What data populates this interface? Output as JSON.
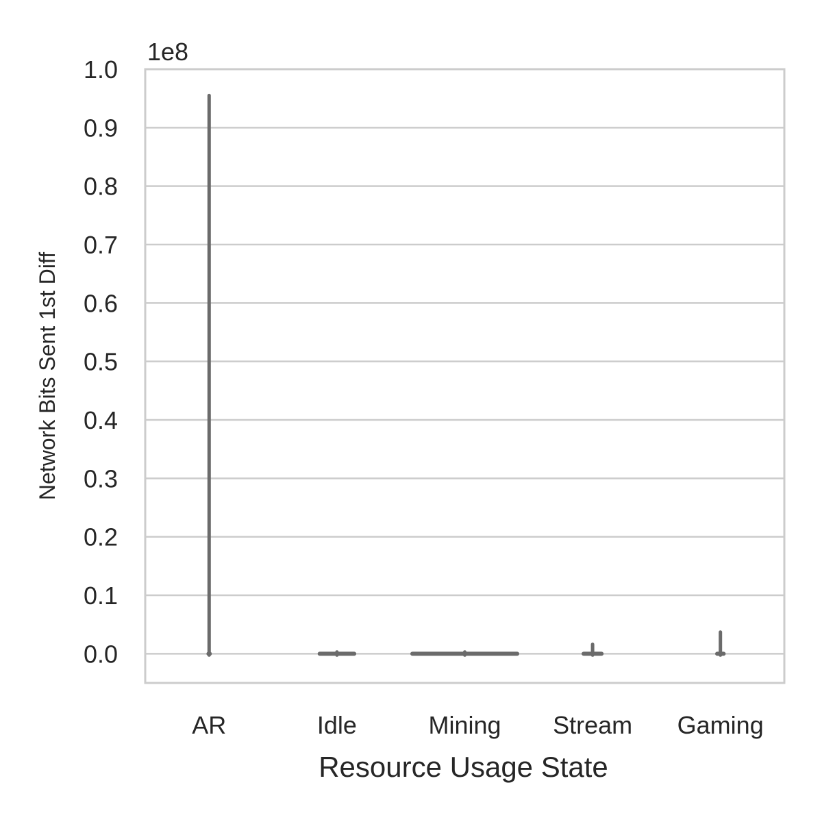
{
  "chart_data": {
    "type": "violin",
    "title": "",
    "xlabel": "Resource Usage State",
    "ylabel": "Network Bits Sent 1st Diff",
    "y_offset_label": "1e8",
    "y_scale_exponent": 8,
    "categories": [
      "AR",
      "Idle",
      "Mining",
      "Stream",
      "Gaming"
    ],
    "y_ticks": [
      "0.0",
      "0.1",
      "0.2",
      "0.3",
      "0.4",
      "0.5",
      "0.6",
      "0.7",
      "0.8",
      "0.9",
      "1.0"
    ],
    "ylim": [
      -0.05,
      1.0
    ],
    "grid": "horizontal",
    "series": [
      {
        "category": "AR",
        "min": 0.0,
        "max": 0.955,
        "body_halfwidth": 0.01
      },
      {
        "category": "Idle",
        "min": 0.0,
        "max": 0.003,
        "body_halfwidth": 0.27
      },
      {
        "category": "Mining",
        "min": 0.0,
        "max": 0.003,
        "body_halfwidth": 0.82
      },
      {
        "category": "Stream",
        "min": 0.0,
        "max": 0.016,
        "body_halfwidth": 0.14
      },
      {
        "category": "Gaming",
        "min": 0.0,
        "max": 0.037,
        "body_halfwidth": 0.05
      }
    ],
    "colors": {
      "violin": "#6b6b6b",
      "grid": "#cccccc",
      "spine": "#cccccc",
      "text": "#262626"
    }
  }
}
